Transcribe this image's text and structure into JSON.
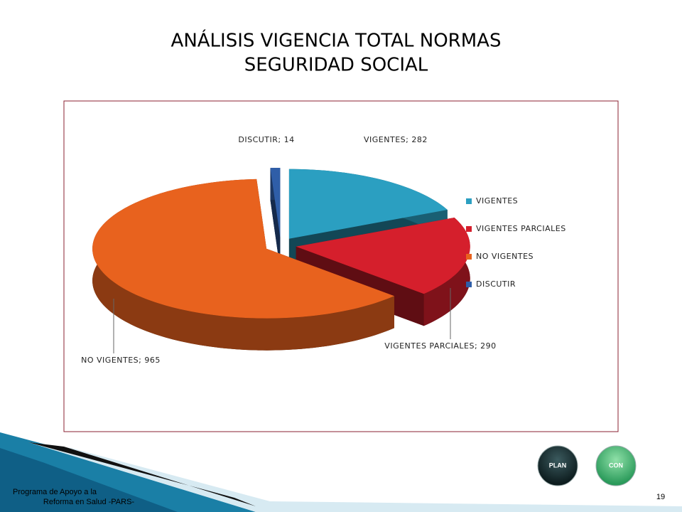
{
  "chart_data": {
    "type": "pie",
    "title": [
      "ANÁLISIS VIGENCIA  TOTAL NORMAS",
      "SEGURIDAD SOCIAL"
    ],
    "categories": [
      "VIGENTES",
      "VIGENTES PARCIALES",
      "NO VIGENTES",
      "DISCUTIR"
    ],
    "values": [
      282,
      290,
      965,
      14
    ],
    "value_labels": [
      "VIGENTES; 282",
      "VIGENTES PARCIALES; 290",
      "NO VIGENTES; 965",
      "DISCUTIR; 14"
    ],
    "colors": [
      "#2b9fc1",
      "#d51f2c",
      "#e8621e",
      "#2f5ea8"
    ],
    "legend": "right"
  },
  "footer": {
    "text": "Programa de Apoyo a la Reforma en Salud -PARS-",
    "page_number": "19"
  },
  "buttons": [
    "PLAN",
    "CON"
  ]
}
